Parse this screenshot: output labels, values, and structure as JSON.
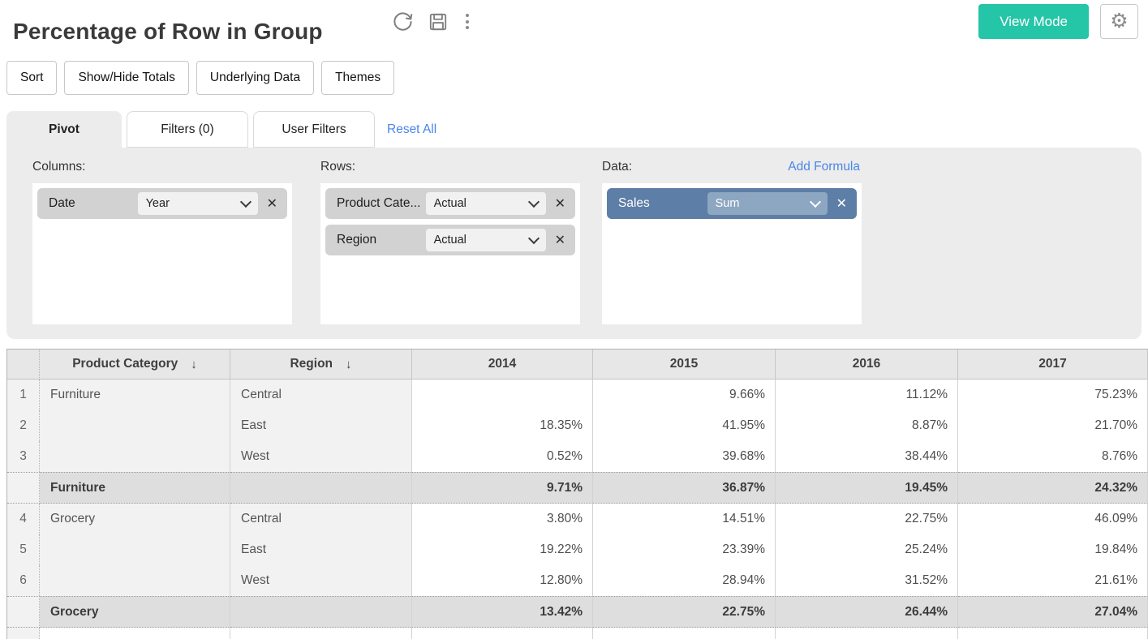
{
  "colors": {
    "accent_teal": "#25c5a7",
    "link_blue": "#4a86e8",
    "measure_pill_blue": "#5d7ea6",
    "panel_gray": "#ececec"
  },
  "icons": {
    "gear": "⚙",
    "close": "✕",
    "sort_desc": "↓"
  },
  "header": {
    "title": "Percentage of Row in Group",
    "view_mode_label": "View Mode"
  },
  "toolbar": {
    "buttons": [
      "Sort",
      "Show/Hide Totals",
      "Underlying Data",
      "Themes"
    ]
  },
  "tabs": {
    "items": [
      {
        "label": "Pivot",
        "active": true
      },
      {
        "label": "Filters (0)",
        "active": false
      },
      {
        "label": "User Filters",
        "active": false
      }
    ],
    "reset_all_label": "Reset All"
  },
  "pivot_panel": {
    "columns": {
      "label": "Columns:",
      "fields": [
        {
          "name": "Date",
          "agg": "Year"
        }
      ]
    },
    "rows": {
      "label": "Rows:",
      "fields": [
        {
          "name": "Product Cate...",
          "agg": "Actual"
        },
        {
          "name": "Region",
          "agg": "Actual"
        }
      ]
    },
    "data": {
      "label": "Data:",
      "add_formula_label": "Add Formula",
      "fields": [
        {
          "name": "Sales",
          "agg": "Sum"
        }
      ]
    }
  },
  "table": {
    "columns": [
      {
        "label": "Product Category",
        "sortable": true
      },
      {
        "label": "Region",
        "sortable": true
      },
      {
        "label": "2014",
        "sortable": false
      },
      {
        "label": "2015",
        "sortable": false
      },
      {
        "label": "2016",
        "sortable": false
      },
      {
        "label": "2017",
        "sortable": false
      }
    ],
    "rows": [
      {
        "num": "1",
        "type": "data",
        "category": "Furniture",
        "region": "Central",
        "values": [
          "",
          "9.66%",
          "11.12%",
          "75.23%"
        ]
      },
      {
        "num": "2",
        "type": "data",
        "category": "",
        "region": "East",
        "values": [
          "18.35%",
          "41.95%",
          "8.87%",
          "21.70%"
        ]
      },
      {
        "num": "3",
        "type": "data",
        "category": "",
        "region": "West",
        "values": [
          "0.52%",
          "39.68%",
          "38.44%",
          "8.76%"
        ]
      },
      {
        "num": "",
        "type": "subtotal",
        "category": "Furniture",
        "region": "",
        "values": [
          "9.71%",
          "36.87%",
          "19.45%",
          "24.32%"
        ]
      },
      {
        "num": "4",
        "type": "data",
        "category": "Grocery",
        "region": "Central",
        "values": [
          "3.80%",
          "14.51%",
          "22.75%",
          "46.09%"
        ]
      },
      {
        "num": "5",
        "type": "data",
        "category": "",
        "region": "East",
        "values": [
          "19.22%",
          "23.39%",
          "25.24%",
          "19.84%"
        ]
      },
      {
        "num": "6",
        "type": "data",
        "category": "",
        "region": "West",
        "values": [
          "12.80%",
          "28.94%",
          "31.52%",
          "21.61%"
        ]
      },
      {
        "num": "",
        "type": "subtotal",
        "category": "Grocery",
        "region": "",
        "values": [
          "13.42%",
          "22.75%",
          "26.44%",
          "27.04%"
        ]
      }
    ]
  }
}
